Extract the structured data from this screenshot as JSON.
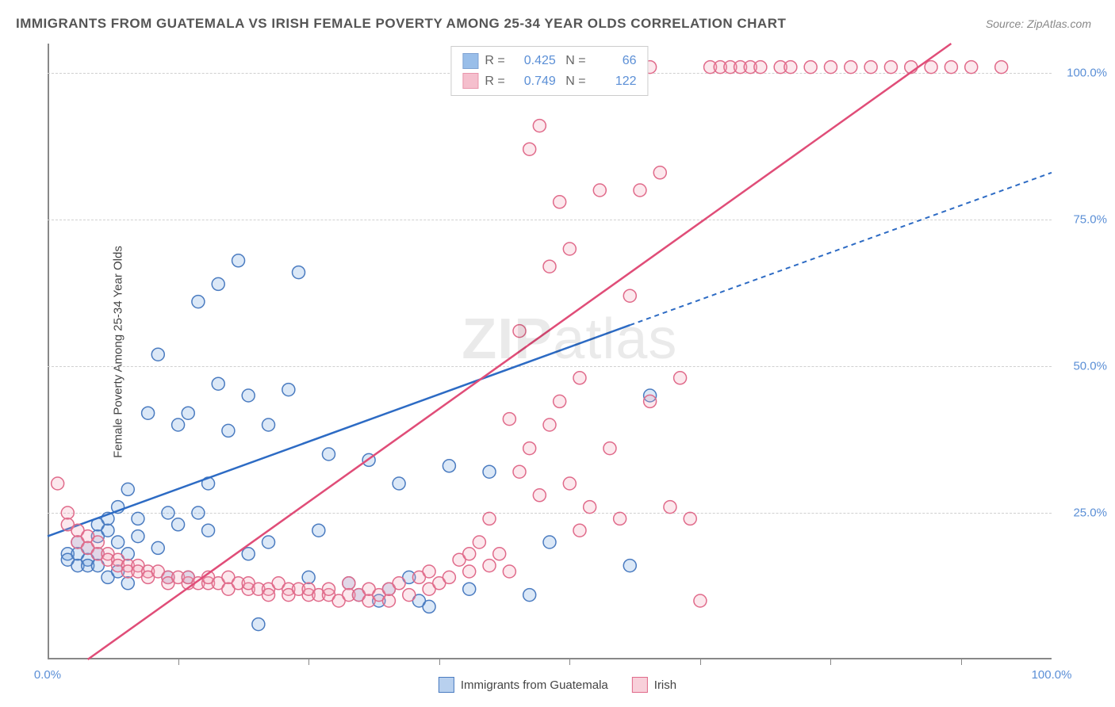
{
  "title": "IMMIGRANTS FROM GUATEMALA VS IRISH FEMALE POVERTY AMONG 25-34 YEAR OLDS CORRELATION CHART",
  "source": "Source: ZipAtlas.com",
  "watermark": "ZIPatlas",
  "chart": {
    "type": "scatter",
    "y_axis_label": "Female Poverty Among 25-34 Year Olds",
    "xlim": [
      0,
      100
    ],
    "ylim": [
      0,
      105
    ],
    "x_ticks": [
      0,
      50,
      100
    ],
    "x_tick_labels": [
      "0.0%",
      "",
      "100.0%"
    ],
    "y_ticks": [
      25,
      50,
      75,
      100
    ],
    "y_tick_labels": [
      "25.0%",
      "50.0%",
      "75.0%",
      "100.0%"
    ],
    "x_minor_ticks": [
      13,
      26,
      39,
      52,
      65,
      78,
      91
    ],
    "grid_color": "#d0d0d0",
    "axis_color": "#888888",
    "background_color": "#ffffff",
    "marker_radius": 8,
    "marker_stroke_width": 1.5,
    "marker_fill_opacity": 0.25,
    "line_width": 2.5,
    "dash_pattern": "6,5",
    "label_fontsize": 15,
    "tick_color": "#5b8fd6",
    "series": [
      {
        "name": "Immigrants from Guatemala",
        "color": "#6fa3e0",
        "stroke": "#4a7bc0",
        "line_color": "#2d6bc4",
        "R": "0.425",
        "N": "66",
        "trend": {
          "x1": 0,
          "y1": 21,
          "x2": 58,
          "y2": 57,
          "x2_ext": 100,
          "y2_ext": 83,
          "solid_limit_x": 58
        },
        "points": [
          [
            2,
            18
          ],
          [
            2,
            17
          ],
          [
            3,
            18
          ],
          [
            3,
            16
          ],
          [
            3,
            20
          ],
          [
            4,
            17
          ],
          [
            4,
            19
          ],
          [
            4,
            16
          ],
          [
            5,
            21
          ],
          [
            5,
            23
          ],
          [
            5,
            18
          ],
          [
            5,
            16
          ],
          [
            6,
            22
          ],
          [
            6,
            24
          ],
          [
            6,
            14
          ],
          [
            7,
            15
          ],
          [
            7,
            20
          ],
          [
            7,
            26
          ],
          [
            8,
            13
          ],
          [
            8,
            18
          ],
          [
            8,
            29
          ],
          [
            9,
            21
          ],
          [
            9,
            24
          ],
          [
            10,
            42
          ],
          [
            11,
            19
          ],
          [
            11,
            52
          ],
          [
            12,
            14
          ],
          [
            12,
            25
          ],
          [
            13,
            23
          ],
          [
            13,
            40
          ],
          [
            14,
            14
          ],
          [
            14,
            42
          ],
          [
            15,
            25
          ],
          [
            15,
            61
          ],
          [
            16,
            22
          ],
          [
            16,
            30
          ],
          [
            17,
            47
          ],
          [
            17,
            64
          ],
          [
            18,
            39
          ],
          [
            19,
            68
          ],
          [
            20,
            18
          ],
          [
            20,
            45
          ],
          [
            21,
            6
          ],
          [
            22,
            40
          ],
          [
            22,
            20
          ],
          [
            24,
            46
          ],
          [
            25,
            66
          ],
          [
            26,
            14
          ],
          [
            27,
            22
          ],
          [
            28,
            35
          ],
          [
            30,
            13
          ],
          [
            31,
            11
          ],
          [
            32,
            34
          ],
          [
            33,
            10
          ],
          [
            34,
            12
          ],
          [
            35,
            30
          ],
          [
            36,
            14
          ],
          [
            37,
            10
          ],
          [
            38,
            9
          ],
          [
            40,
            33
          ],
          [
            42,
            12
          ],
          [
            44,
            32
          ],
          [
            58,
            16
          ],
          [
            60,
            45
          ],
          [
            48,
            11
          ],
          [
            50,
            20
          ]
        ]
      },
      {
        "name": "Irish",
        "color": "#f2a5b8",
        "stroke": "#e06a8a",
        "line_color": "#e04d78",
        "R": "0.749",
        "N": "122",
        "trend": {
          "x1": 4,
          "y1": 0,
          "x2": 90,
          "y2": 105,
          "x2_ext": 90,
          "y2_ext": 105,
          "solid_limit_x": 90
        },
        "points": [
          [
            1,
            30
          ],
          [
            2,
            25
          ],
          [
            2,
            23
          ],
          [
            3,
            22
          ],
          [
            3,
            20
          ],
          [
            4,
            21
          ],
          [
            4,
            19
          ],
          [
            5,
            18
          ],
          [
            5,
            20
          ],
          [
            6,
            18
          ],
          [
            6,
            17
          ],
          [
            7,
            17
          ],
          [
            7,
            16
          ],
          [
            8,
            16
          ],
          [
            8,
            15
          ],
          [
            9,
            16
          ],
          [
            9,
            15
          ],
          [
            10,
            15
          ],
          [
            10,
            14
          ],
          [
            11,
            15
          ],
          [
            12,
            14
          ],
          [
            12,
            13
          ],
          [
            13,
            14
          ],
          [
            14,
            13
          ],
          [
            14,
            14
          ],
          [
            15,
            13
          ],
          [
            16,
            13
          ],
          [
            16,
            14
          ],
          [
            17,
            13
          ],
          [
            18,
            14
          ],
          [
            18,
            12
          ],
          [
            19,
            13
          ],
          [
            20,
            12
          ],
          [
            20,
            13
          ],
          [
            21,
            12
          ],
          [
            22,
            12
          ],
          [
            22,
            11
          ],
          [
            23,
            13
          ],
          [
            24,
            12
          ],
          [
            24,
            11
          ],
          [
            25,
            12
          ],
          [
            26,
            11
          ],
          [
            26,
            12
          ],
          [
            27,
            11
          ],
          [
            28,
            11
          ],
          [
            28,
            12
          ],
          [
            29,
            10
          ],
          [
            30,
            13
          ],
          [
            30,
            11
          ],
          [
            31,
            11
          ],
          [
            32,
            10
          ],
          [
            32,
            12
          ],
          [
            33,
            11
          ],
          [
            34,
            10
          ],
          [
            34,
            12
          ],
          [
            35,
            13
          ],
          [
            36,
            11
          ],
          [
            37,
            14
          ],
          [
            38,
            12
          ],
          [
            38,
            15
          ],
          [
            39,
            13
          ],
          [
            40,
            14
          ],
          [
            41,
            17
          ],
          [
            42,
            15
          ],
          [
            42,
            18
          ],
          [
            43,
            20
          ],
          [
            44,
            16
          ],
          [
            44,
            24
          ],
          [
            45,
            18
          ],
          [
            46,
            41
          ],
          [
            46,
            15
          ],
          [
            47,
            56
          ],
          [
            47,
            32
          ],
          [
            48,
            87
          ],
          [
            48,
            36
          ],
          [
            49,
            91
          ],
          [
            49,
            28
          ],
          [
            50,
            40
          ],
          [
            50,
            67
          ],
          [
            51,
            78
          ],
          [
            51,
            44
          ],
          [
            52,
            70
          ],
          [
            52,
            30
          ],
          [
            53,
            48
          ],
          [
            53,
            22
          ],
          [
            54,
            26
          ],
          [
            55,
            80
          ],
          [
            56,
            36
          ],
          [
            57,
            24
          ],
          [
            58,
            62
          ],
          [
            59,
            80
          ],
          [
            60,
            44
          ],
          [
            61,
            83
          ],
          [
            62,
            26
          ],
          [
            63,
            48
          ],
          [
            64,
            24
          ],
          [
            65,
            10
          ],
          [
            66,
            101
          ],
          [
            67,
            101
          ],
          [
            68,
            101
          ],
          [
            69,
            101
          ],
          [
            70,
            101
          ],
          [
            71,
            101
          ],
          [
            73,
            101
          ],
          [
            74,
            101
          ],
          [
            76,
            101
          ],
          [
            78,
            101
          ],
          [
            80,
            101
          ],
          [
            82,
            101
          ],
          [
            84,
            101
          ],
          [
            86,
            101
          ],
          [
            88,
            101
          ],
          [
            90,
            101
          ],
          [
            92,
            101
          ],
          [
            95,
            101
          ],
          [
            52,
            101
          ],
          [
            53,
            101
          ],
          [
            54,
            101
          ],
          [
            55,
            101
          ],
          [
            56,
            101
          ],
          [
            58,
            101
          ],
          [
            60,
            101
          ]
        ]
      }
    ]
  },
  "legend_bottom": [
    {
      "label": "Immigrants from Guatemala",
      "fill": "#b8d0ee",
      "stroke": "#4a7bc0"
    },
    {
      "label": "Irish",
      "fill": "#f8d0da",
      "stroke": "#e06a8a"
    }
  ]
}
